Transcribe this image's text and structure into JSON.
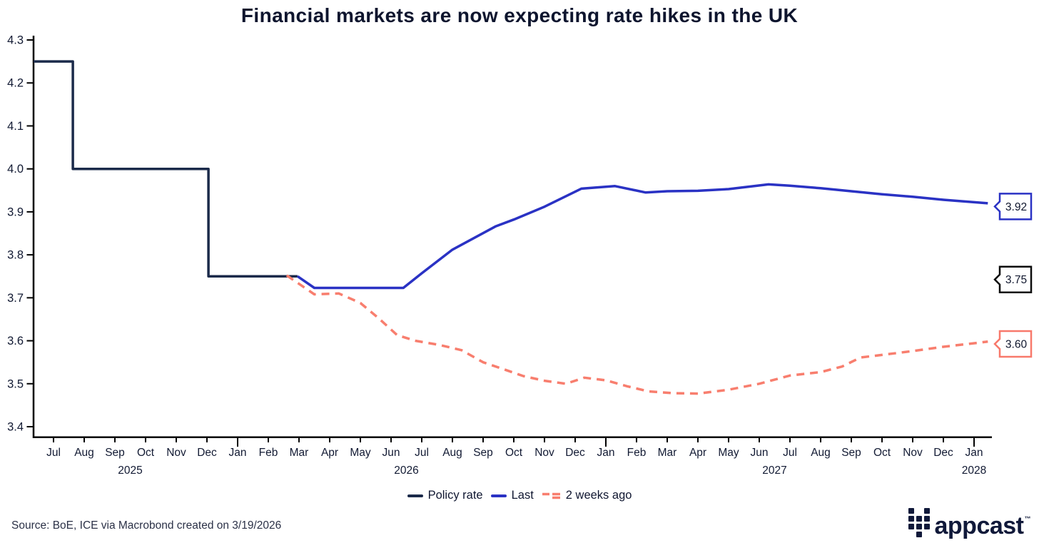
{
  "title": "Financial markets are now expecting rate hikes in the UK",
  "source_note": "Source: BoE, ICE via Macrobond created on 3/19/2026",
  "logo": {
    "text": "appcast",
    "tm": "™"
  },
  "colors": {
    "policy_navy": "#1b2a4a",
    "last_blue": "#2a32c4",
    "two_weeks_salmon": "#f87e6e",
    "axis_black": "#000000",
    "tick_text": "#121a33",
    "annotation_text": "#10172e"
  },
  "chart_data": {
    "type": "line",
    "title": "Financial markets are now expecting rate hikes in the UK",
    "xlabel": "",
    "ylabel": "",
    "ylim": [
      3.4,
      4.3
    ],
    "grid": false,
    "legend_position": "bottom",
    "y_ticks": [
      4.3,
      4.2,
      4.1,
      4.0,
      3.9,
      3.8,
      3.7,
      3.6,
      3.5,
      3.4
    ],
    "x_months": [
      "Jul",
      "Aug",
      "Sep",
      "Oct",
      "Nov",
      "Dec",
      "Jan",
      "Feb",
      "Mar",
      "Apr",
      "May",
      "Jun",
      "Jul",
      "Aug",
      "Sep",
      "Oct",
      "Nov",
      "Dec",
      "Jan",
      "Feb",
      "Mar",
      "Apr",
      "May",
      "Jun",
      "Jul",
      "Aug",
      "Sep",
      "Oct",
      "Nov",
      "Dec",
      "Jan"
    ],
    "x_years": [
      {
        "label": "2025",
        "center": 2.5
      },
      {
        "label": "2026",
        "center": 11.5
      },
      {
        "label": "2027",
        "center": 23.5
      },
      {
        "label": "2028",
        "center": 30
      }
    ],
    "series": [
      {
        "name": "Policy rate",
        "color": "#1b2a4a",
        "style": "solid",
        "points": [
          [
            -0.65,
            4.25
          ],
          [
            0.63,
            4.25
          ],
          [
            0.63,
            4.0
          ],
          [
            5.05,
            4.0
          ],
          [
            5.05,
            3.75
          ],
          [
            7.95,
            3.75
          ]
        ]
      },
      {
        "name": "Last",
        "color": "#2a32c4",
        "style": "solid",
        "points": [
          [
            7.95,
            3.75
          ],
          [
            8.5,
            3.723
          ],
          [
            11.4,
            3.723
          ],
          [
            12,
            3.757
          ],
          [
            13,
            3.812
          ],
          [
            14.4,
            3.866
          ],
          [
            15,
            3.882
          ],
          [
            16,
            3.912
          ],
          [
            17.2,
            3.954
          ],
          [
            18.3,
            3.96
          ],
          [
            19.3,
            3.945
          ],
          [
            20,
            3.948
          ],
          [
            21,
            3.949
          ],
          [
            22,
            3.953
          ],
          [
            23.3,
            3.964
          ],
          [
            24,
            3.961
          ],
          [
            25,
            3.955
          ],
          [
            26,
            3.948
          ],
          [
            27,
            3.941
          ],
          [
            28,
            3.935
          ],
          [
            29,
            3.928
          ],
          [
            30.45,
            3.92
          ]
        ]
      },
      {
        "name": "2 weeks ago",
        "color": "#f87e6e",
        "style": "dashed",
        "points": [
          [
            7.6,
            3.752
          ],
          [
            8.5,
            3.708
          ],
          [
            9.3,
            3.71
          ],
          [
            10,
            3.688
          ],
          [
            10.6,
            3.652
          ],
          [
            11.2,
            3.613
          ],
          [
            11.8,
            3.6
          ],
          [
            12.6,
            3.59
          ],
          [
            13.3,
            3.578
          ],
          [
            14,
            3.55
          ],
          [
            14.7,
            3.533
          ],
          [
            15.3,
            3.518
          ],
          [
            16,
            3.507
          ],
          [
            16.7,
            3.5
          ],
          [
            17.3,
            3.514
          ],
          [
            18,
            3.508
          ],
          [
            18.7,
            3.494
          ],
          [
            19.4,
            3.482
          ],
          [
            20.2,
            3.478
          ],
          [
            21,
            3.477
          ],
          [
            22,
            3.486
          ],
          [
            23,
            3.5
          ],
          [
            24,
            3.519
          ],
          [
            25,
            3.527
          ],
          [
            25.7,
            3.54
          ],
          [
            26.3,
            3.561
          ],
          [
            27,
            3.567
          ],
          [
            28,
            3.576
          ],
          [
            29,
            3.586
          ],
          [
            30.45,
            3.598
          ]
        ]
      }
    ],
    "annotations": [
      {
        "label": "3.92",
        "value": 3.92,
        "color": "#2a32c4"
      },
      {
        "label": "3.75",
        "value": 3.75,
        "color": "#0c0c0c"
      },
      {
        "label": "3.60",
        "value": 3.6,
        "color": "#f8796b"
      }
    ]
  }
}
